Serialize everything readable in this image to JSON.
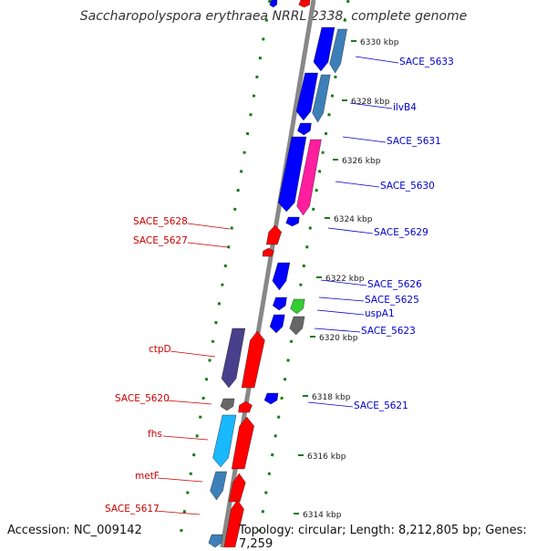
{
  "title": "Saccharopolyspora erythraea NRRL 2338, complete genome",
  "accession_text": "Accession: NC_009142",
  "topology_text": "Topology: circular; Length: 8,212,805 bp; Genes: 7,259",
  "colors": {
    "label_red": "#cc0000",
    "label_blue": "#0000cc",
    "gene_red": "#ff0000",
    "gene_blue": "#0000ff",
    "gene_darkblue": "#4a3f8c",
    "gene_cyan": "#1ab8ff",
    "gene_steel": "#3d7fb8",
    "gene_pink": "#ff1e9e",
    "gene_green": "#33cc33",
    "gene_gray": "#666666",
    "backbone": "#888888",
    "dots": "#1a7a1a"
  },
  "kbp_ticks": [
    "6330 kbp",
    "6328 kbp",
    "6326 kbp",
    "6324 kbp",
    "6322 kbp",
    "6320 kbp",
    "6318 kbp",
    "6316 kbp",
    "6314 kbp"
  ],
  "left_labels": [
    "SACE_5628",
    "SACE_5627",
    "ctpD",
    "SACE_5620",
    "fhs",
    "metF",
    "SACE_5617"
  ],
  "right_labels": [
    "SACE_5633",
    "ilvB4",
    "SACE_5631",
    "SACE_5630",
    "SACE_5629",
    "SACE_5626",
    "SACE_5625",
    "uspA1",
    "SACE_5623",
    "SACE_5621"
  ]
}
